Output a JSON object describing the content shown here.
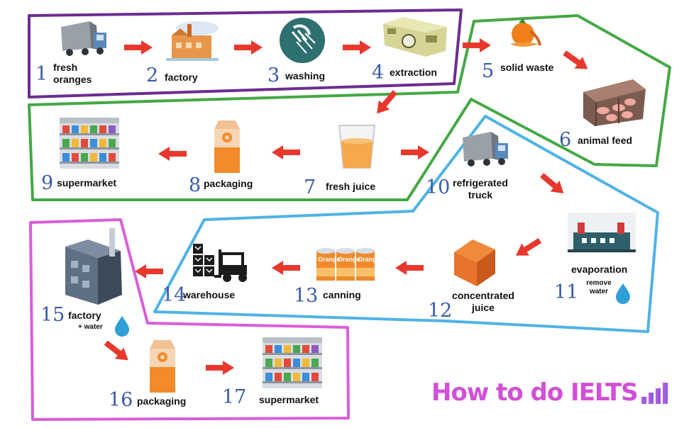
{
  "steps": [
    {
      "num": "1",
      "label": "fresh oranges",
      "lines": [
        "fresh",
        "oranges"
      ],
      "icon": "truck-icon"
    },
    {
      "num": "2",
      "label": "factory",
      "icon": "factory-icon"
    },
    {
      "num": "3",
      "label": "washing",
      "icon": "shower-icon"
    },
    {
      "num": "4",
      "label": "extraction",
      "icon": "extractor-machine-icon"
    },
    {
      "num": "5",
      "label": "solid waste",
      "icon": "orange-peel-icon"
    },
    {
      "num": "6",
      "label": "animal feed",
      "icon": "pig-pen-icon"
    },
    {
      "num": "7",
      "label": "fresh juice",
      "icon": "juice-glass-icon"
    },
    {
      "num": "8",
      "label": "packaging",
      "icon": "juice-carton-icon"
    },
    {
      "num": "9",
      "label": "supermarket",
      "icon": "supermarket-shelves-icon"
    },
    {
      "num": "10",
      "label": "refrigerated truck",
      "lines": [
        "refrigerated",
        "truck"
      ],
      "icon": "truck-icon"
    },
    {
      "num": "11",
      "label": "evaporation",
      "note": "remove water",
      "note_lines": [
        "remove",
        "water"
      ],
      "icon": "evaporation-plant-icon"
    },
    {
      "num": "12",
      "label": "concentrated juice",
      "lines": [
        "concentrated",
        "juice"
      ],
      "icon": "concentrate-cube-icon"
    },
    {
      "num": "13",
      "label": "canning",
      "icon": "orange-cans-icon"
    },
    {
      "num": "14",
      "label": "warehouse",
      "icon": "forklift-boxes-icon"
    },
    {
      "num": "15",
      "label": "factory",
      "note": "+ water",
      "icon": "factory-chimney-icon"
    },
    {
      "num": "16",
      "label": "packaging",
      "icon": "juice-carton-icon"
    },
    {
      "num": "17",
      "label": "supermarket",
      "icon": "supermarket-shelves-icon"
    }
  ],
  "can_text": "Orange",
  "brand": {
    "text": "How to do IELTS",
    "icon": "signal-bars-icon"
  },
  "colors": {
    "arrow": "#e8382d",
    "number": "#3a5ba8",
    "region_purple": "#6b2d91",
    "region_green": "#45a845",
    "region_blue": "#4fb3e6",
    "region_pink": "#d95ed9",
    "brand": "#d24fd6"
  }
}
